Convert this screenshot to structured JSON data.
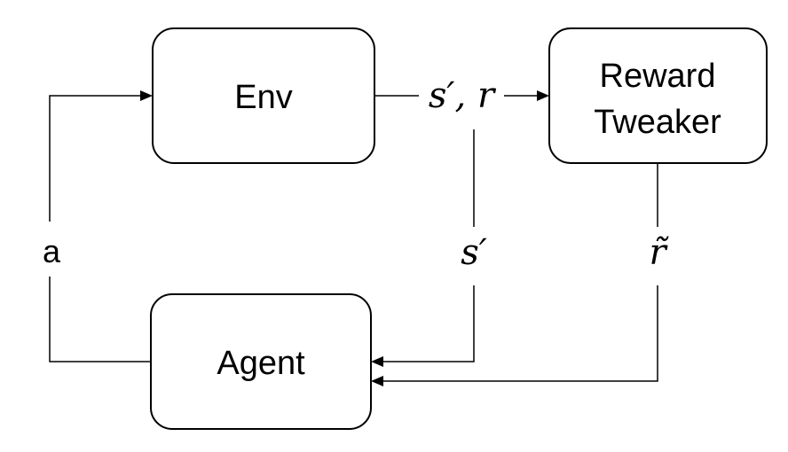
{
  "nodes": {
    "env": {
      "label": "Env"
    },
    "reward_tweaker": {
      "label_line1": "Reward",
      "label_line2": "Tweaker"
    },
    "agent": {
      "label": "Agent"
    }
  },
  "edges": {
    "env_output": {
      "label": "s′, r"
    },
    "state_to_agent": {
      "label": "s′"
    },
    "tweaked_reward": {
      "label": "r̃"
    },
    "action": {
      "label": "a"
    }
  },
  "colors": {
    "stroke": "#000000",
    "background": "#ffffff"
  }
}
